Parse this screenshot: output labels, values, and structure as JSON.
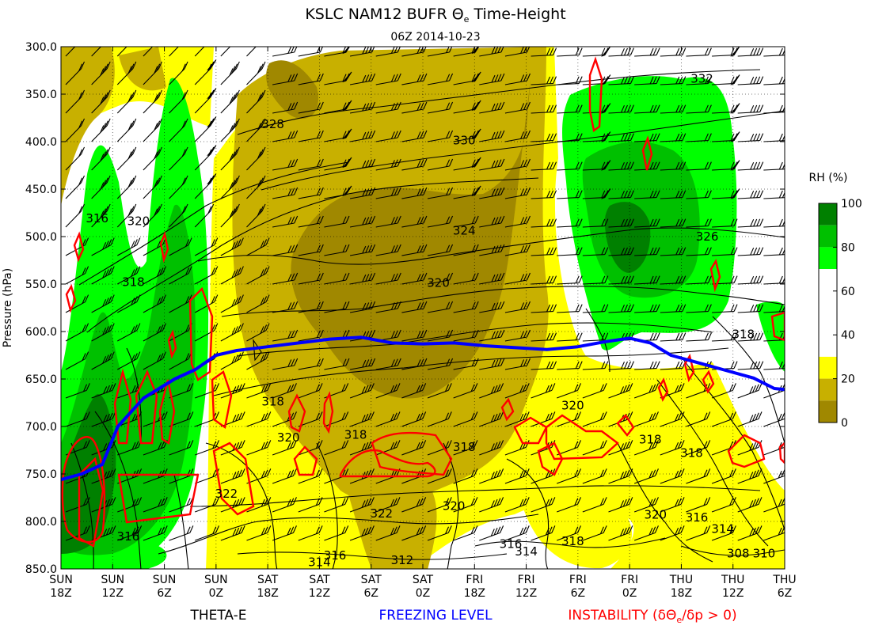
{
  "chart_data": {
    "type": "time-height",
    "title": "KSLC NAM12 BUFR Θe Time-Height",
    "title_plain": "KSLC NAM12 BUFR ",
    "title_theta": "Θ",
    "title_sub": "e",
    "title_tail": " Time-Height",
    "subtitle": "06Z 2014-10-23",
    "ylabel": "Pressure (hPa)",
    "ylim": [
      850,
      300
    ],
    "y_ticks": [
      "300.0",
      "350.0",
      "400.0",
      "450.0",
      "500.0",
      "550.0",
      "600.0",
      "650.0",
      "700.0",
      "750.0",
      "800.0",
      "850.0"
    ],
    "x_ticks": [
      {
        "day": "SUN",
        "hour": "18Z"
      },
      {
        "day": "SUN",
        "hour": "12Z"
      },
      {
        "day": "SUN",
        "hour": "6Z"
      },
      {
        "day": "SUN",
        "hour": "0Z"
      },
      {
        "day": "SAT",
        "hour": "18Z"
      },
      {
        "day": "SAT",
        "hour": "12Z"
      },
      {
        "day": "SAT",
        "hour": "6Z"
      },
      {
        "day": "SAT",
        "hour": "0Z"
      },
      {
        "day": "FRI",
        "hour": "18Z"
      },
      {
        "day": "FRI",
        "hour": "12Z"
      },
      {
        "day": "FRI",
        "hour": "6Z"
      },
      {
        "day": "FRI",
        "hour": "0Z"
      },
      {
        "day": "THU",
        "hour": "18Z"
      },
      {
        "day": "THU",
        "hour": "12Z"
      },
      {
        "day": "THU",
        "hour": "6Z"
      }
    ],
    "colorbar": {
      "label": "RH (%)",
      "ticks": [
        "100",
        "80",
        "60",
        "40",
        "20",
        "0"
      ],
      "levels": [
        {
          "from": 90,
          "to": 100,
          "color": "#008000"
        },
        {
          "from": 80,
          "to": 90,
          "color": "#00c000"
        },
        {
          "from": 70,
          "to": 80,
          "color": "#00ff00"
        },
        {
          "from": 30,
          "to": 70,
          "color": "#ffffff"
        },
        {
          "from": 20,
          "to": 30,
          "color": "#ffff00"
        },
        {
          "from": 10,
          "to": 20,
          "color": "#c8b000"
        },
        {
          "from": 0,
          "to": 10,
          "color": "#a08800"
        }
      ]
    },
    "freezing_level": {
      "name": "FREEZING LEVEL",
      "color": "#0000ff",
      "points": [
        [
          0,
          756
        ],
        [
          0.4,
          750
        ],
        [
          0.8,
          740
        ],
        [
          1.1,
          700
        ],
        [
          1.6,
          670
        ],
        [
          2.2,
          650
        ],
        [
          2.6,
          640
        ],
        [
          3.0,
          625
        ],
        [
          3.4,
          620
        ],
        [
          4.0,
          616
        ],
        [
          4.6,
          612
        ],
        [
          5.2,
          608
        ],
        [
          5.8,
          606
        ],
        [
          6.4,
          612
        ],
        [
          7.0,
          613
        ],
        [
          7.6,
          612
        ],
        [
          8.2,
          615
        ],
        [
          8.8,
          617
        ],
        [
          9.4,
          619
        ],
        [
          10.0,
          616
        ],
        [
          10.5,
          611
        ],
        [
          11.0,
          607
        ],
        [
          11.4,
          612
        ],
        [
          11.8,
          625
        ],
        [
          12.2,
          631
        ],
        [
          12.8,
          640
        ],
        [
          13.4,
          649
        ],
        [
          13.8,
          660
        ],
        [
          14.0,
          661
        ]
      ]
    },
    "theta_e_label": "THETA-E",
    "theta_e_contours": [
      {
        "label": "316",
        "x": 0.7,
        "p": 485
      },
      {
        "label": "320",
        "x": 1.5,
        "p": 488
      },
      {
        "label": "328",
        "x": 4.1,
        "p": 386
      },
      {
        "label": "330",
        "x": 7.8,
        "p": 403
      },
      {
        "label": "324",
        "x": 7.8,
        "p": 498
      },
      {
        "label": "320",
        "x": 7.3,
        "p": 553
      },
      {
        "label": "332",
        "x": 12.4,
        "p": 338
      },
      {
        "label": "326",
        "x": 12.5,
        "p": 504
      },
      {
        "label": "318",
        "x": 1.4,
        "p": 552
      },
      {
        "label": "318",
        "x": 13.2,
        "p": 607
      },
      {
        "label": "318",
        "x": 4.1,
        "p": 678
      },
      {
        "label": "320",
        "x": 4.4,
        "p": 716
      },
      {
        "label": "318",
        "x": 5.7,
        "p": 713
      },
      {
        "label": "318",
        "x": 7.8,
        "p": 726
      },
      {
        "label": "320",
        "x": 9.9,
        "p": 682
      },
      {
        "label": "318",
        "x": 11.4,
        "p": 718
      },
      {
        "label": "318",
        "x": 12.2,
        "p": 732
      },
      {
        "label": "322",
        "x": 3.2,
        "p": 775
      },
      {
        "label": "322",
        "x": 6.2,
        "p": 796
      },
      {
        "label": "320",
        "x": 7.6,
        "p": 788
      },
      {
        "label": "320",
        "x": 11.5,
        "p": 797
      },
      {
        "label": "316",
        "x": 1.3,
        "p": 820
      },
      {
        "label": "318",
        "x": 9.9,
        "p": 825
      },
      {
        "label": "316",
        "x": 8.7,
        "p": 828
      },
      {
        "label": "314",
        "x": 9.0,
        "p": 836
      },
      {
        "label": "316",
        "x": 5.3,
        "p": 840
      },
      {
        "label": "314",
        "x": 5.0,
        "p": 847
      },
      {
        "label": "312",
        "x": 6.6,
        "p": 845
      },
      {
        "label": "316",
        "x": 12.3,
        "p": 800
      },
      {
        "label": "314",
        "x": 12.8,
        "p": 812
      },
      {
        "label": "308",
        "x": 13.1,
        "p": 838
      },
      {
        "label": "310",
        "x": 13.6,
        "p": 838
      }
    ],
    "instability": {
      "label": "INSTABILITY (δΘe/δp > 0)",
      "label_plain": "INSTABILITY (δΘ",
      "label_sub": "e",
      "label_tail": "/δp > 0)",
      "color": "#ff0000"
    }
  }
}
